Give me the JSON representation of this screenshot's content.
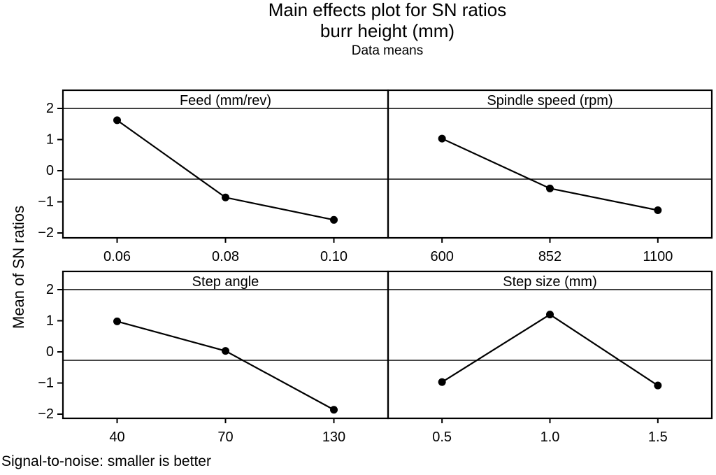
{
  "colors": {
    "line": "#000000",
    "background": "#ffffff",
    "text": "#000000"
  },
  "chart_data": {
    "type": "line",
    "kind": "main-effects-plot",
    "title": "Main effects plot for SN ratios",
    "subtitle": "burr height (mm)",
    "caption": "Data means",
    "ylabel": "Mean of SN ratios",
    "footnote": "Signal-to-noise: smaller is better",
    "ylim": [
      -2.2,
      2.6
    ],
    "yticks": [
      2,
      1,
      0,
      -1,
      -2
    ],
    "reference_line": -0.27,
    "panel_header_line_value": 2,
    "grid": "off",
    "legend": "none",
    "marker": "filled-circle",
    "panels": [
      {
        "label": "Feed (mm/rev)",
        "categories": [
          "0.06",
          "0.08",
          "0.10"
        ],
        "values": [
          1.62,
          -0.86,
          -1.58
        ]
      },
      {
        "label": "Spindle speed (rpm)",
        "categories": [
          "600",
          "852",
          "1100"
        ],
        "values": [
          1.03,
          -0.57,
          -1.27
        ]
      },
      {
        "label": "Step angle",
        "categories": [
          "40",
          "70",
          "130"
        ],
        "values": [
          0.98,
          0.03,
          -1.86
        ]
      },
      {
        "label": "Step size (mm)",
        "categories": [
          "0.5",
          "1.0",
          "1.5"
        ],
        "values": [
          -0.97,
          1.2,
          -1.08
        ]
      }
    ]
  }
}
